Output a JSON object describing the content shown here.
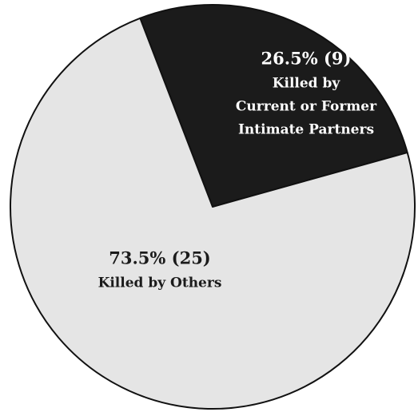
{
  "chart_data": {
    "type": "pie",
    "categories": [
      [
        "Killed by",
        "Current or Former",
        "Intimate Partners"
      ],
      [
        "Killed by Others"
      ]
    ],
    "values": [
      26.5,
      73.5
    ],
    "value_labels": [
      "26.5% (9)",
      "73.5% (25)"
    ],
    "colors": [
      "#1b1b1b",
      "#e5e5e5"
    ],
    "label_colors": [
      "#ffffff",
      "#1b1b1b"
    ]
  }
}
